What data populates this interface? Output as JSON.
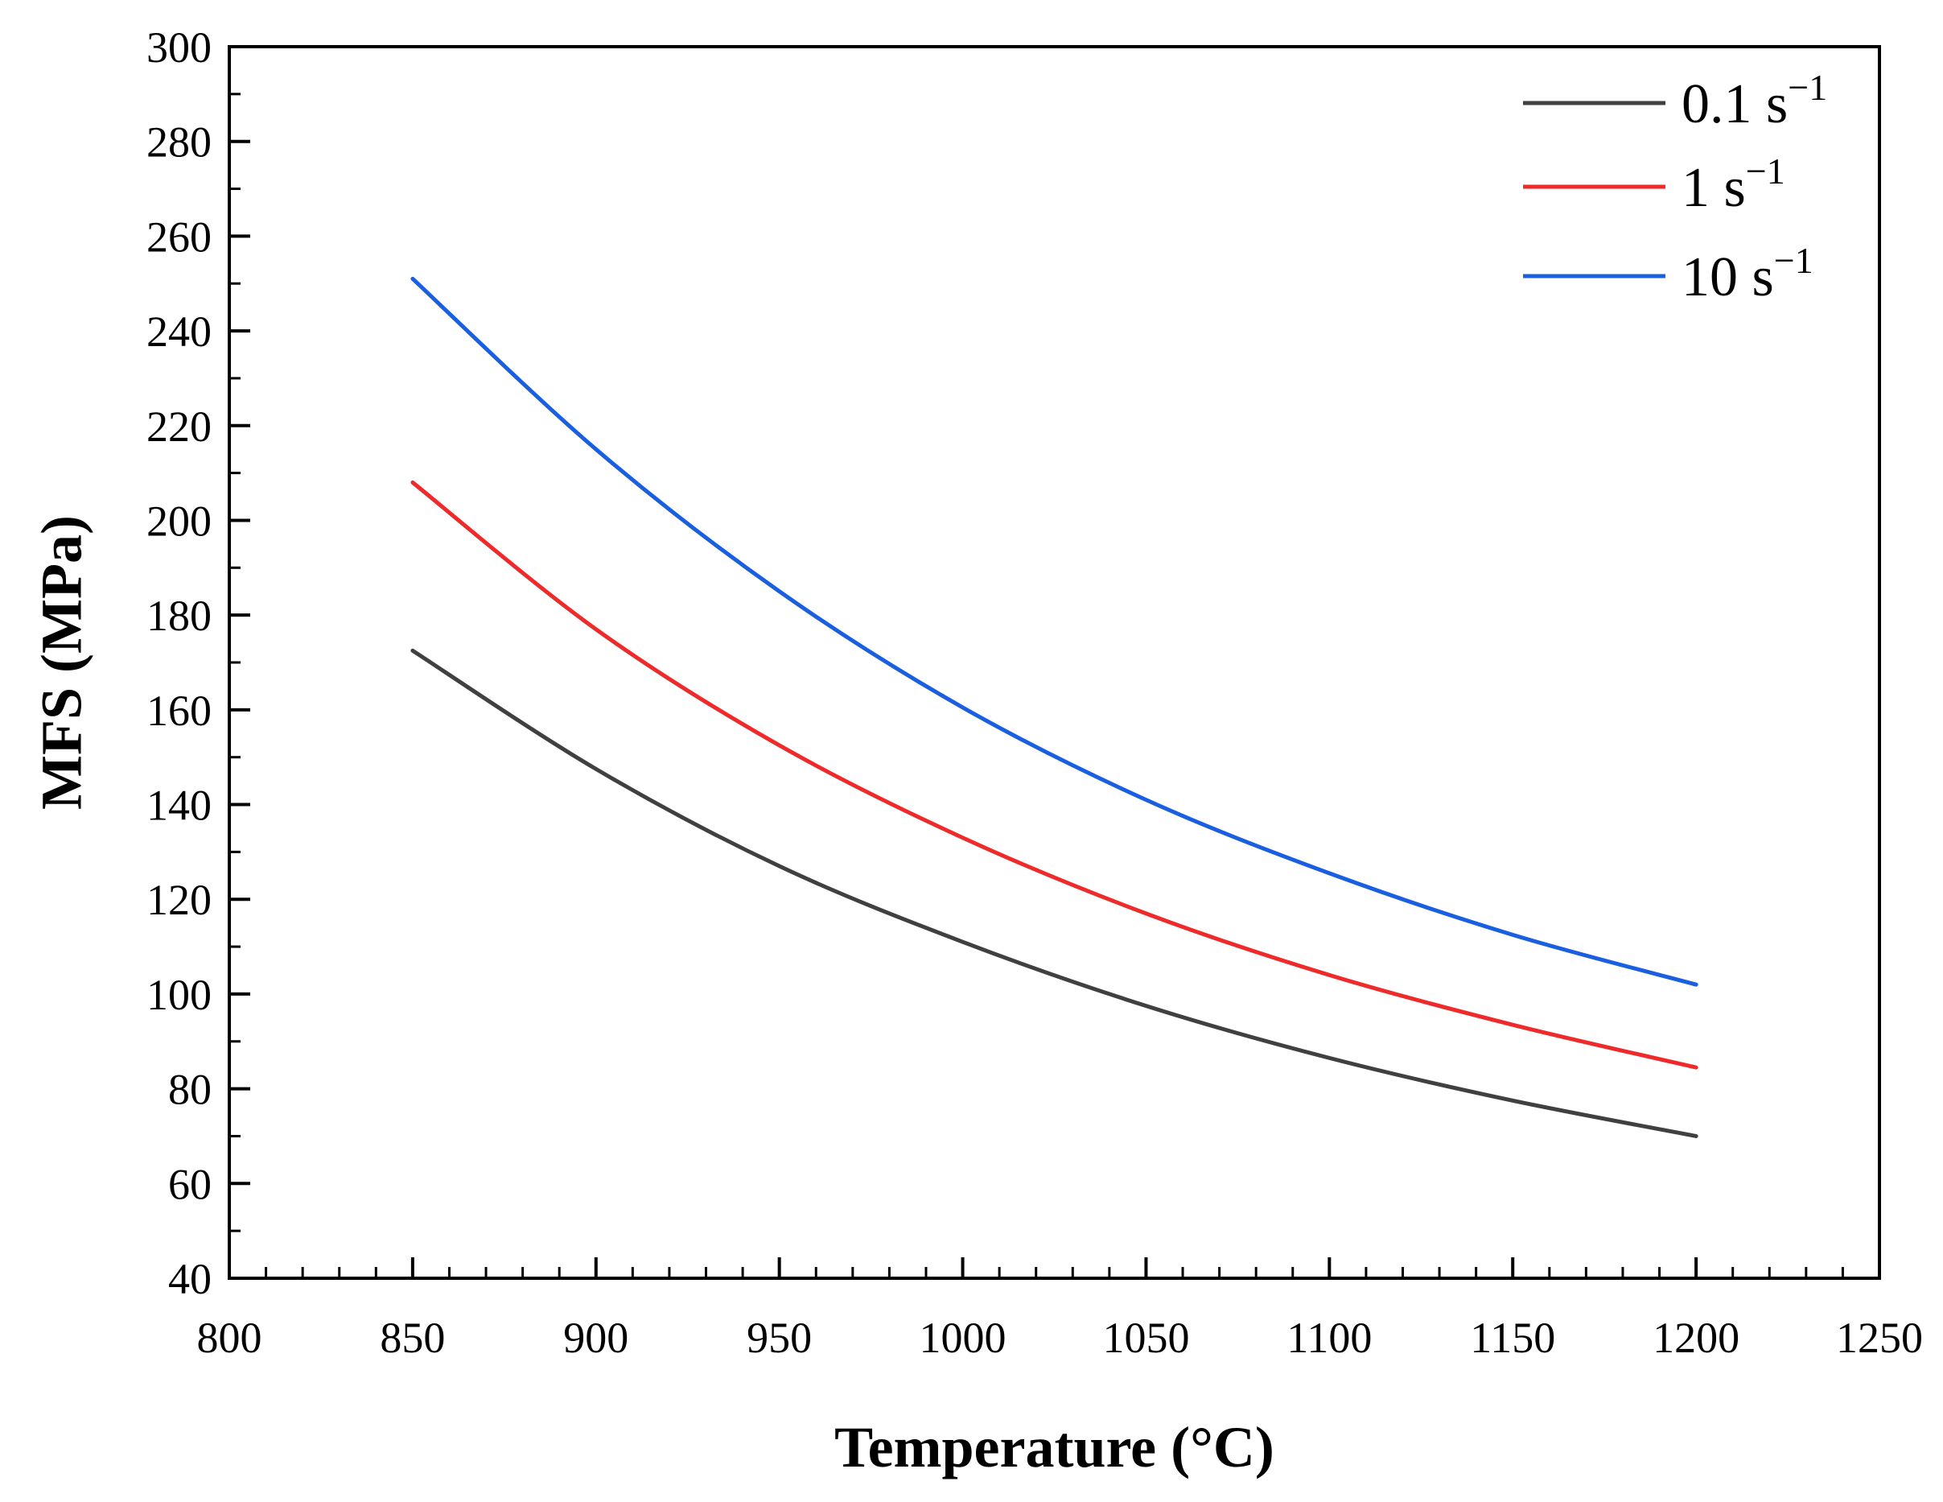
{
  "chart_data": {
    "type": "line",
    "title": "",
    "xlabel": "Temperature (°C)",
    "ylabel": "MFS (MPa)",
    "xlim": [
      800,
      1250
    ],
    "ylim": [
      40,
      300
    ],
    "xticks": [
      800,
      850,
      900,
      950,
      1000,
      1050,
      1100,
      1150,
      1200,
      1250
    ],
    "yticks": [
      40,
      60,
      80,
      100,
      120,
      140,
      160,
      180,
      200,
      220,
      240,
      260,
      280,
      300
    ],
    "x": [
      850,
      900,
      950,
      1000,
      1050,
      1100,
      1150,
      1200
    ],
    "series": [
      {
        "name": "0.1 s",
        "superscript": "−1",
        "color": "#404040",
        "values": [
          172.5,
          147.5,
          127,
          111,
          97.5,
          86.5,
          77.5,
          70
        ]
      },
      {
        "name": "1 s",
        "superscript": "−1",
        "color": "#ee2a2a",
        "values": [
          208,
          177,
          152.5,
          133,
          117,
          104,
          93.5,
          84.5
        ]
      },
      {
        "name": "10 s",
        "superscript": "−1",
        "color": "#1a5fe0",
        "values": [
          251,
          215,
          185,
          160.5,
          141,
          125.5,
          112.5,
          102
        ]
      }
    ],
    "legend_position": "top-right",
    "grid": false
  }
}
